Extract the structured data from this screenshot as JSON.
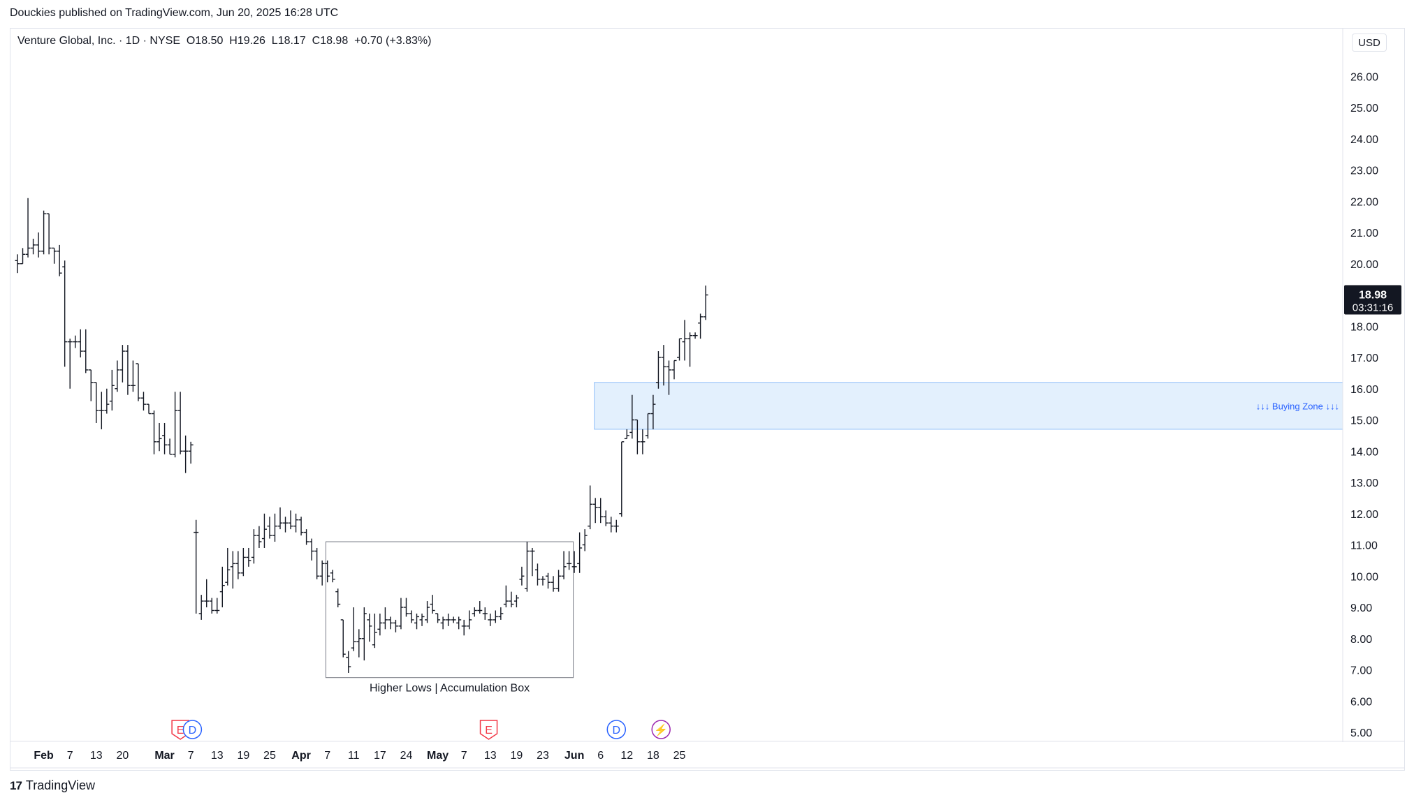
{
  "publish_line": "Douckies published on TradingView.com, Jun 20, 2025 16:28 UTC",
  "legend": {
    "symbol": "Venture Global, Inc. · 1D · NYSE",
    "o_label": "O",
    "o": "18.50",
    "h_label": "H",
    "h": "19.26",
    "l_label": "L",
    "l": "18.17",
    "c_label": "C",
    "c": "18.98",
    "change": "+0.70 (+3.83%)"
  },
  "currency": "USD",
  "price_badge": {
    "price": "18.98",
    "countdown": "03:31:16"
  },
  "footer_brand": "TradingView",
  "colors": {
    "bar": "#131722",
    "grid_border": "#e0e3eb",
    "box_stroke": "#787b86",
    "zone_fill": "#e3f0fd",
    "zone_stroke": "#90bff9",
    "zone_text": "#2962ff",
    "earnings": "#f23645",
    "dividend": "#2962ff",
    "split": "#9c27b0"
  },
  "chart_data": {
    "type": "ohlc",
    "ylim": [
      4.6,
      27.0
    ],
    "y_ticks": [
      5,
      6,
      7,
      8,
      9,
      10,
      11,
      12,
      13,
      14,
      15,
      16,
      17,
      18,
      19,
      20,
      21,
      22,
      23,
      24,
      25,
      26
    ],
    "x_ticks": [
      {
        "label": "Feb",
        "i": 5,
        "bold": true
      },
      {
        "label": "7",
        "i": 10
      },
      {
        "label": "13",
        "i": 15
      },
      {
        "label": "20",
        "i": 20
      },
      {
        "label": "Mar",
        "i": 28,
        "bold": true
      },
      {
        "label": "7",
        "i": 33
      },
      {
        "label": "13",
        "i": 38
      },
      {
        "label": "19",
        "i": 43
      },
      {
        "label": "25",
        "i": 48
      },
      {
        "label": "Apr",
        "i": 54,
        "bold": true
      },
      {
        "label": "7",
        "i": 59
      },
      {
        "label": "11",
        "i": 64
      },
      {
        "label": "17",
        "i": 69
      },
      {
        "label": "24",
        "i": 74
      },
      {
        "label": "May",
        "i": 80,
        "bold": true
      },
      {
        "label": "7",
        "i": 85
      },
      {
        "label": "13",
        "i": 90
      },
      {
        "label": "19",
        "i": 95
      },
      {
        "label": "23",
        "i": 100
      },
      {
        "label": "Jun",
        "i": 106,
        "bold": true
      },
      {
        "label": "6",
        "i": 111
      },
      {
        "label": "12",
        "i": 116
      },
      {
        "label": "18",
        "i": 121
      },
      {
        "label": "25",
        "i": 126
      }
    ],
    "bars": [
      [
        20.1,
        20.3,
        19.7,
        20.0
      ],
      [
        20.0,
        20.5,
        20.0,
        20.3
      ],
      [
        20.3,
        22.1,
        20.2,
        20.5
      ],
      [
        20.5,
        20.8,
        20.3,
        20.6
      ],
      [
        20.6,
        21.0,
        20.2,
        20.4
      ],
      [
        20.4,
        21.7,
        20.3,
        21.6
      ],
      [
        21.6,
        21.6,
        20.3,
        20.5
      ],
      [
        20.5,
        20.5,
        20.0,
        20.4
      ],
      [
        20.4,
        20.6,
        19.6,
        19.7
      ],
      [
        19.9,
        20.1,
        16.7,
        17.5
      ],
      [
        17.5,
        17.6,
        16.0,
        17.5
      ],
      [
        17.5,
        17.7,
        17.3,
        17.5
      ],
      [
        17.5,
        17.9,
        17.0,
        17.2
      ],
      [
        17.2,
        17.9,
        16.5,
        16.6
      ],
      [
        16.6,
        16.6,
        15.6,
        16.2
      ],
      [
        16.2,
        16.2,
        14.9,
        15.3
      ],
      [
        15.3,
        15.9,
        14.7,
        15.3
      ],
      [
        15.3,
        16.0,
        15.2,
        15.5
      ],
      [
        15.6,
        16.6,
        15.3,
        16.1
      ],
      [
        16.0,
        16.9,
        15.9,
        16.6
      ],
      [
        16.6,
        17.4,
        16.2,
        17.2
      ],
      [
        17.2,
        17.4,
        15.8,
        16.1
      ],
      [
        16.1,
        16.9,
        15.9,
        16.1
      ],
      [
        16.8,
        16.8,
        15.6,
        15.7
      ],
      [
        15.7,
        15.9,
        15.3,
        15.5
      ],
      [
        15.5,
        15.5,
        15.2,
        15.2
      ],
      [
        15.2,
        15.3,
        13.9,
        14.3
      ],
      [
        14.3,
        14.9,
        14.0,
        14.4
      ],
      [
        14.5,
        14.9,
        13.9,
        14.2
      ],
      [
        14.2,
        14.4,
        13.9,
        13.9
      ],
      [
        13.9,
        15.9,
        13.8,
        15.3
      ],
      [
        15.3,
        15.9,
        13.9,
        14.0
      ],
      [
        14.0,
        14.5,
        13.3,
        14.0
      ],
      [
        14.0,
        14.3,
        13.6,
        14.2
      ],
      [
        11.4,
        11.8,
        8.8,
        11.4
      ],
      [
        8.8,
        9.4,
        8.6,
        9.2
      ],
      [
        9.2,
        9.9,
        9.0,
        9.2
      ],
      [
        9.2,
        9.3,
        8.8,
        8.9
      ],
      [
        8.9,
        9.3,
        8.8,
        8.9
      ],
      [
        9.5,
        10.3,
        9.0,
        9.7
      ],
      [
        9.8,
        10.9,
        9.7,
        10.2
      ],
      [
        10.3,
        10.8,
        9.6,
        10.4
      ],
      [
        10.4,
        10.8,
        9.9,
        10.1
      ],
      [
        10.1,
        10.9,
        10.0,
        10.6
      ],
      [
        10.6,
        10.9,
        10.3,
        10.5
      ],
      [
        10.6,
        11.5,
        10.4,
        11.3
      ],
      [
        11.3,
        11.6,
        10.9,
        11.1
      ],
      [
        11.2,
        12.0,
        10.9,
        11.5
      ],
      [
        11.6,
        11.9,
        11.2,
        11.3
      ],
      [
        11.3,
        12.0,
        11.1,
        11.6
      ],
      [
        11.6,
        12.2,
        11.5,
        11.7
      ],
      [
        11.7,
        11.9,
        11.4,
        11.7
      ],
      [
        11.7,
        12.1,
        11.5,
        11.6
      ],
      [
        11.6,
        12.0,
        11.4,
        11.8
      ],
      [
        11.8,
        11.9,
        11.3,
        11.4
      ],
      [
        11.4,
        11.5,
        11.0,
        11.1
      ],
      [
        11.1,
        11.2,
        10.5,
        10.8
      ],
      [
        10.8,
        10.9,
        9.9,
        10.0
      ],
      [
        10.0,
        10.5,
        9.7,
        10.4
      ],
      [
        10.4,
        10.5,
        9.8,
        10.0
      ],
      [
        10.1,
        10.2,
        9.8,
        9.9
      ],
      [
        9.5,
        9.6,
        9.0,
        9.1
      ],
      [
        8.6,
        8.6,
        7.4,
        7.5
      ],
      [
        7.4,
        7.6,
        6.9,
        7.1
      ],
      [
        7.7,
        9.0,
        7.6,
        7.9
      ],
      [
        7.9,
        8.3,
        7.4,
        8.0
      ],
      [
        8.0,
        9.0,
        7.3,
        8.8
      ],
      [
        8.6,
        8.8,
        7.9,
        8.4
      ],
      [
        7.8,
        8.8,
        7.7,
        8.2
      ],
      [
        8.3,
        8.8,
        8.1,
        8.5
      ],
      [
        8.5,
        9.0,
        8.3,
        8.6
      ],
      [
        8.6,
        8.7,
        8.3,
        8.5
      ],
      [
        8.5,
        8.6,
        8.2,
        8.4
      ],
      [
        8.4,
        9.3,
        8.3,
        9.0
      ],
      [
        9.0,
        9.3,
        8.7,
        8.8
      ],
      [
        8.8,
        8.9,
        8.5,
        8.6
      ],
      [
        8.5,
        8.8,
        8.3,
        8.7
      ],
      [
        8.6,
        8.8,
        8.4,
        8.7
      ],
      [
        8.6,
        9.2,
        8.5,
        9.0
      ],
      [
        9.1,
        9.4,
        8.8,
        8.9
      ],
      [
        8.8,
        8.8,
        8.5,
        8.6
      ],
      [
        8.5,
        8.7,
        8.3,
        8.6
      ],
      [
        8.6,
        8.8,
        8.4,
        8.6
      ],
      [
        8.6,
        8.7,
        8.5,
        8.6
      ],
      [
        8.5,
        8.7,
        8.3,
        8.6
      ],
      [
        8.4,
        8.6,
        8.1,
        8.4
      ],
      [
        8.4,
        8.9,
        8.3,
        8.6
      ],
      [
        8.8,
        9.0,
        8.7,
        8.9
      ],
      [
        8.9,
        9.2,
        8.8,
        8.9
      ],
      [
        8.8,
        9.0,
        8.6,
        8.8
      ],
      [
        8.6,
        8.8,
        8.4,
        8.6
      ],
      [
        8.6,
        8.9,
        8.5,
        8.7
      ],
      [
        8.7,
        9.0,
        8.6,
        8.8
      ],
      [
        9.1,
        9.7,
        9.0,
        9.2
      ],
      [
        9.2,
        9.5,
        9.0,
        9.1
      ],
      [
        9.2,
        9.4,
        9.0,
        9.3
      ],
      [
        9.9,
        10.3,
        9.7,
        10.0
      ],
      [
        9.6,
        11.1,
        9.5,
        10.8
      ],
      [
        10.8,
        10.9,
        10.0,
        10.8
      ],
      [
        10.2,
        10.4,
        9.7,
        9.9
      ],
      [
        9.9,
        10.0,
        9.7,
        9.9
      ],
      [
        10.0,
        10.1,
        9.6,
        9.8
      ],
      [
        9.8,
        10.0,
        9.5,
        9.6
      ],
      [
        9.6,
        10.2,
        9.5,
        10.0
      ],
      [
        10.0,
        10.8,
        9.9,
        10.3
      ],
      [
        10.4,
        10.8,
        10.2,
        10.4
      ],
      [
        10.3,
        10.8,
        10.1,
        10.3
      ],
      [
        10.4,
        11.4,
        10.1,
        10.9
      ],
      [
        11.0,
        11.5,
        10.8,
        11.3
      ],
      [
        11.6,
        12.9,
        11.5,
        12.3
      ],
      [
        12.3,
        12.5,
        11.7,
        12.2
      ],
      [
        12.2,
        12.5,
        11.7,
        11.9
      ],
      [
        11.9,
        12.1,
        11.6,
        11.7
      ],
      [
        11.7,
        11.9,
        11.4,
        11.6
      ],
      [
        11.6,
        11.8,
        11.4,
        11.6
      ],
      [
        12.0,
        14.3,
        11.9,
        14.3
      ],
      [
        14.4,
        14.7,
        14.4,
        14.5
      ],
      [
        14.6,
        15.8,
        14.4,
        15.0
      ],
      [
        15.0,
        15.0,
        13.9,
        14.3
      ],
      [
        14.3,
        14.7,
        13.9,
        14.3
      ],
      [
        14.5,
        15.2,
        14.4,
        15.2
      ],
      [
        15.2,
        15.8,
        14.7,
        15.5
      ],
      [
        16.2,
        17.2,
        16.0,
        17.0
      ],
      [
        17.0,
        17.4,
        16.1,
        16.7
      ],
      [
        16.7,
        16.9,
        15.8,
        16.6
      ],
      [
        16.6,
        16.9,
        16.3,
        16.9
      ],
      [
        17.0,
        17.6,
        16.9,
        17.6
      ],
      [
        17.5,
        18.2,
        16.9,
        17.6
      ],
      [
        17.6,
        17.8,
        16.7,
        17.7
      ],
      [
        17.7,
        17.8,
        17.6,
        17.7
      ],
      [
        18.1,
        18.4,
        17.6,
        18.3
      ],
      [
        18.3,
        19.3,
        18.2,
        19.0
      ]
    ],
    "accumulation_box": {
      "i_start": 58.7,
      "i_end": 105.8,
      "y_low": 6.75,
      "y_high": 11.1,
      "label": "Higher Lows | Accumulation Box"
    },
    "buying_zone": {
      "i_start": 109.8,
      "y_low": 14.7,
      "y_high": 16.2,
      "label": "↓↓↓ Buying Zone ↓↓↓"
    },
    "events": [
      {
        "type": "earnings",
        "letter": "E",
        "i": 31
      },
      {
        "type": "dividend",
        "letter": "D",
        "i": 33.3
      },
      {
        "type": "earnings",
        "letter": "E",
        "i": 89.7
      },
      {
        "type": "dividend",
        "letter": "D",
        "i": 114
      },
      {
        "type": "split",
        "letter": "⚡",
        "i": 122.5
      }
    ]
  }
}
